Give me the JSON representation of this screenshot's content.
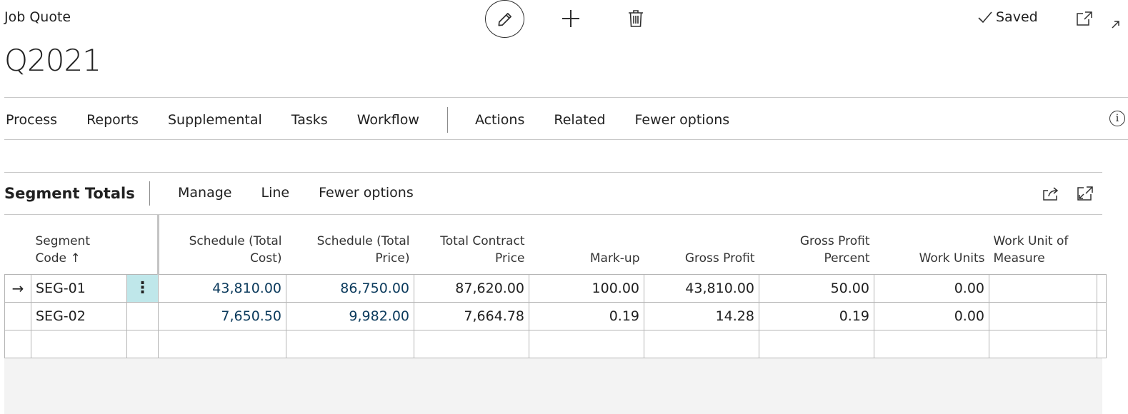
{
  "header": {
    "caption": "Job Quote",
    "title": "Q2021",
    "saved_label": "Saved"
  },
  "action_bar": {
    "items": [
      "Process",
      "Reports",
      "Supplemental",
      "Tasks",
      "Workflow"
    ],
    "items_after_sep": [
      "Actions",
      "Related",
      "Fewer options"
    ]
  },
  "part": {
    "title": "Segment Totals",
    "actions": [
      "Manage",
      "Line",
      "Fewer options"
    ]
  },
  "grid": {
    "columns": {
      "segment_code": "Segment Code",
      "sort_indicator": "↑",
      "schedule_total_cost": "Schedule (Total Cost)",
      "schedule_total_price": "Schedule (Total Price)",
      "total_contract_price": "Total Contract Price",
      "mark_up": "Mark-up",
      "gross_profit": "Gross Profit",
      "gross_profit_percent": "Gross Profit Percent",
      "work_units": "Work Units",
      "work_unit_of_measure": "Work Unit of Measure"
    },
    "rows": [
      {
        "segment_code": "SEG-01",
        "schedule_total_cost": "43,810.00",
        "schedule_total_price": "86,750.00",
        "total_contract_price": "87,620.00",
        "mark_up": "100.00",
        "gross_profit": "43,810.00",
        "gross_profit_percent": "50.00",
        "work_units": "0.00",
        "work_unit_of_measure": ""
      },
      {
        "segment_code": "SEG-02",
        "schedule_total_cost": "7,650.50",
        "schedule_total_price": "9,982.00",
        "total_contract_price": "7,664.78",
        "mark_up": "0.19",
        "gross_profit": "14.28",
        "gross_profit_percent": "0.19",
        "work_units": "0.00",
        "work_unit_of_measure": ""
      }
    ],
    "current_row_marker": "→",
    "row_menu_glyph": "⋮"
  },
  "icons": {
    "edit": "pencil-icon",
    "new": "plus-icon",
    "delete": "trash-icon",
    "saved": "checkmark-icon",
    "popout": "open-in-new-window-icon",
    "collapse": "collapse-arrow-icon",
    "info": "info-icon",
    "share": "share-icon",
    "expand": "expand-icon"
  }
}
